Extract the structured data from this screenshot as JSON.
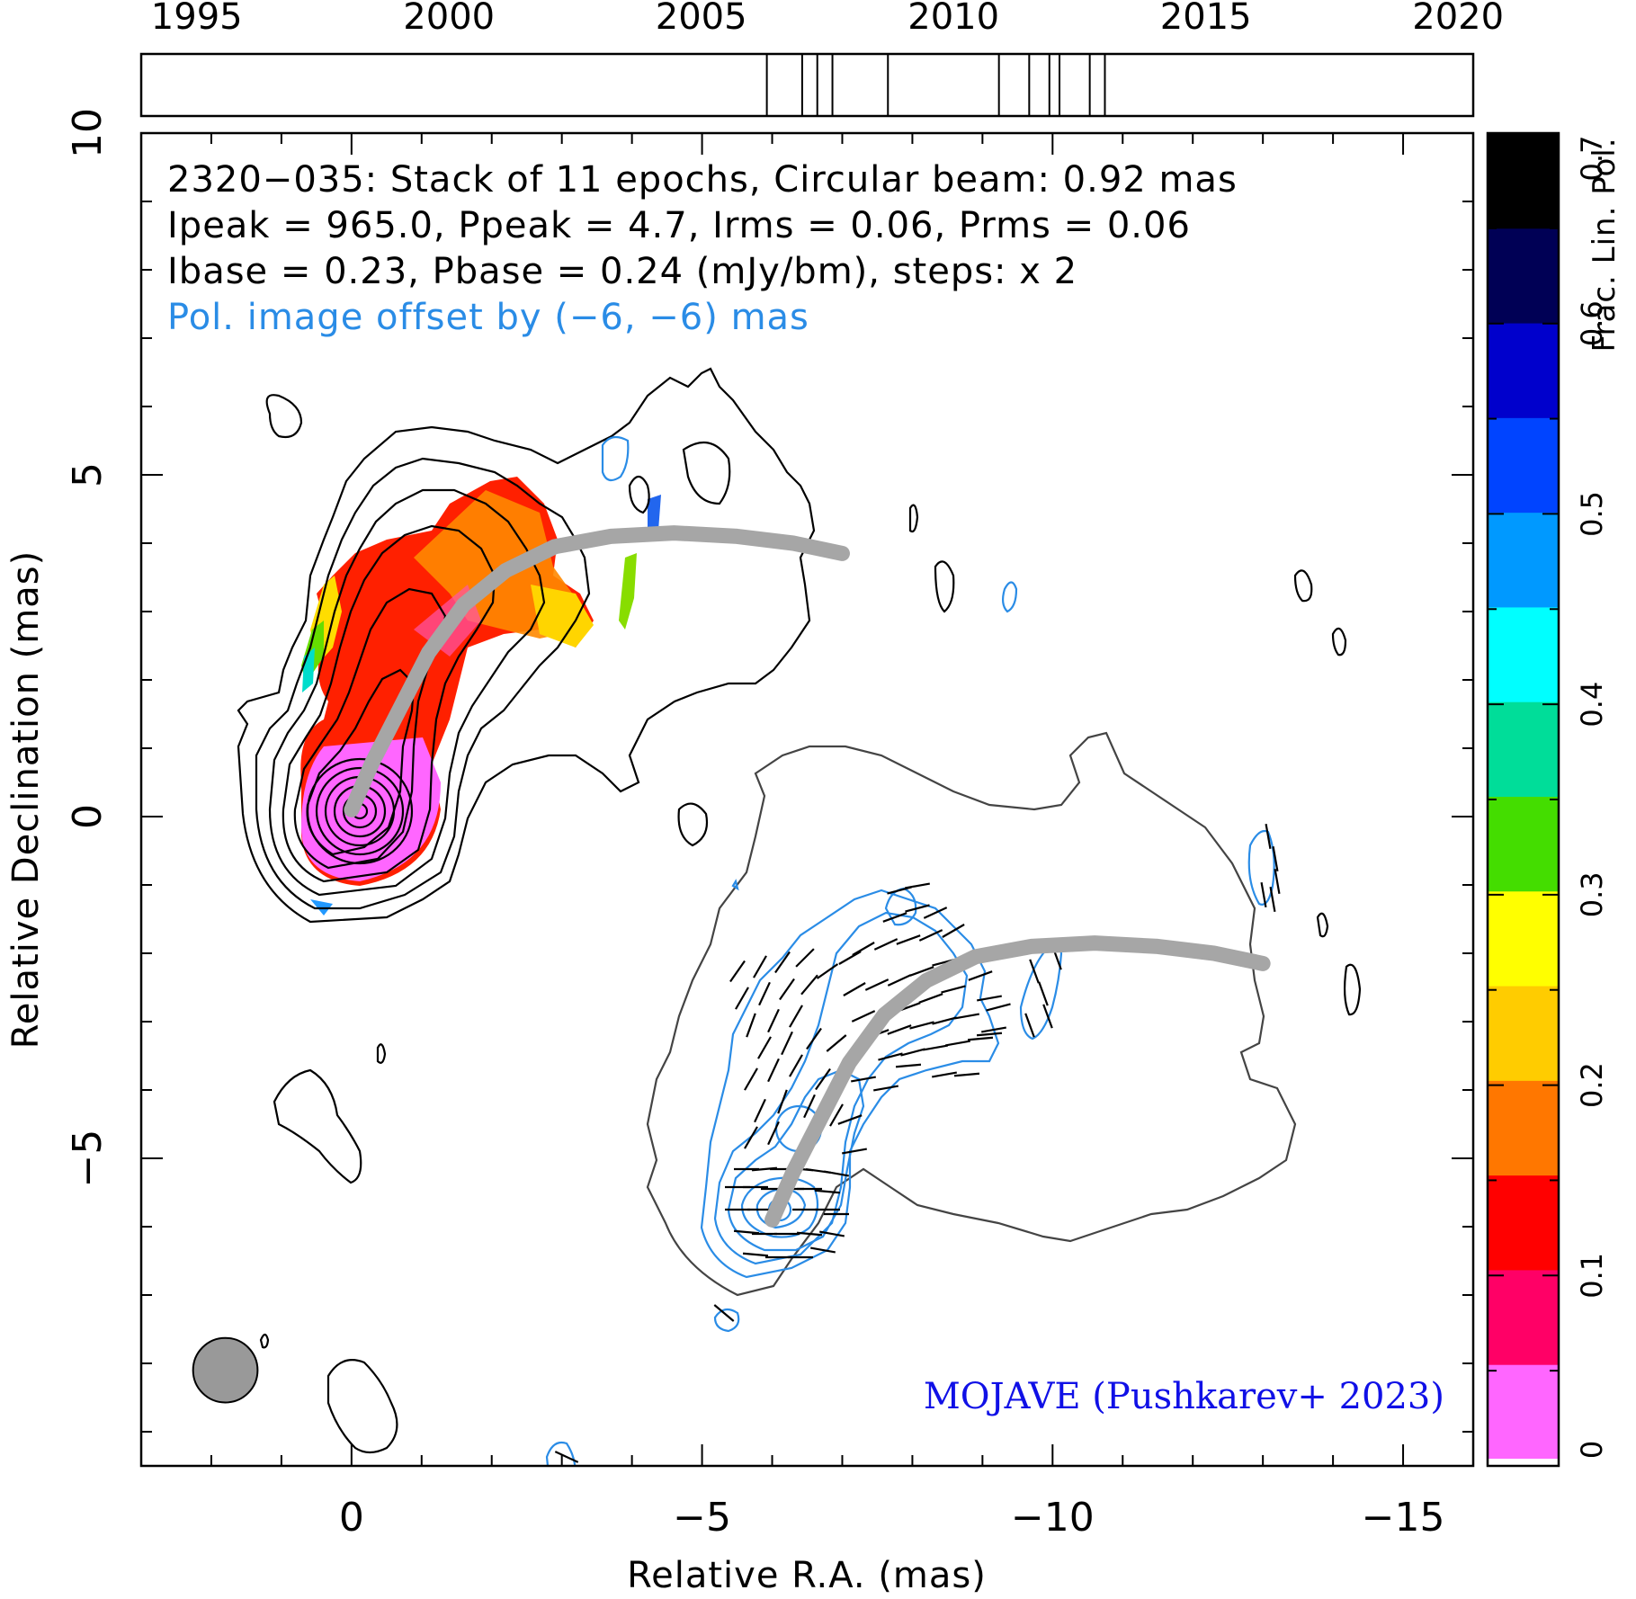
{
  "chart_data": {
    "type": "contour",
    "source": "2320−035",
    "info_lines": [
      "2320−035: Stack of 11 epochs, Circular beam: 0.92 mas",
      "Ipeak = 965.0, Ppeak = 4.7, Irms = 0.06, Prms = 0.06",
      "Ibase = 0.23, Pbase = 0.24 (mJy/bm), steps: x 2",
      "Pol. image offset by (−6, −6) mas"
    ],
    "xlabel": "Relative R.A. (mas)",
    "ylabel": "Relative Declination (mas)",
    "xlim": [
      3,
      -16
    ],
    "ylim": [
      -9.5,
      10
    ],
    "x_ticks": [
      0,
      -5,
      -10,
      -15
    ],
    "x_tick_labels": [
      "0",
      "−5",
      "−10",
      "−15"
    ],
    "y_ticks": [
      10,
      5,
      0,
      -5
    ],
    "y_tick_labels": [
      "10",
      "5",
      "0",
      "−5"
    ],
    "timeline": {
      "range": [
        1993.9,
        2020.3
      ],
      "year_ticks": [
        1995,
        2000,
        2005,
        2010,
        2015,
        2020
      ],
      "year_labels": [
        "1995",
        "2000",
        "2005",
        "2010",
        "2015",
        "2020"
      ],
      "epochs": [
        2006.3,
        2007.0,
        2007.3,
        2007.6,
        2008.7,
        2010.9,
        2011.5,
        2011.9,
        2012.1,
        2012.7,
        2013.0
      ]
    },
    "colorbar": {
      "label": "Frac. Lin. Pol.",
      "range": [
        0,
        0.7
      ],
      "ticks": [
        0,
        0.1,
        0.2,
        0.3,
        0.4,
        0.5,
        0.6,
        0.7
      ],
      "tick_labels": [
        "0",
        "0.1",
        "0.2",
        "0.3",
        "0.4",
        "0.5",
        "0.6",
        "0.7"
      ],
      "colors": [
        "#ff66ff",
        "#ff0066",
        "#ff0000",
        "#ff7700",
        "#ffcc00",
        "#ffff00",
        "#44dd00",
        "#00dd99",
        "#00ffff",
        "#0099ff",
        "#0044ff",
        "#0000cc",
        "#000055",
        "#000000"
      ]
    },
    "beam": {
      "diameter_mas": 0.92,
      "x": 1.8,
      "y": -8.1
    },
    "ridge_line": {
      "x": [
        0.0,
        -0.3,
        -0.7,
        -1.1,
        -1.6,
        -2.2,
        -2.9,
        -3.7,
        -4.6,
        -5.5,
        -6.3,
        -7.0
      ],
      "y": [
        0.1,
        0.8,
        1.6,
        2.4,
        3.1,
        3.6,
        3.95,
        4.1,
        4.15,
        4.1,
        4.0,
        3.85
      ]
    },
    "ridge_line_offset": [
      -6,
      -6
    ],
    "credit": "MOJAVE (Pushkarev+ 2023)"
  },
  "colors": {
    "pol_contours": "#2a8ce6",
    "info_pol_line": "#2a8ce6",
    "ridge": "#a6a6a6",
    "credit": "#1010e6"
  }
}
